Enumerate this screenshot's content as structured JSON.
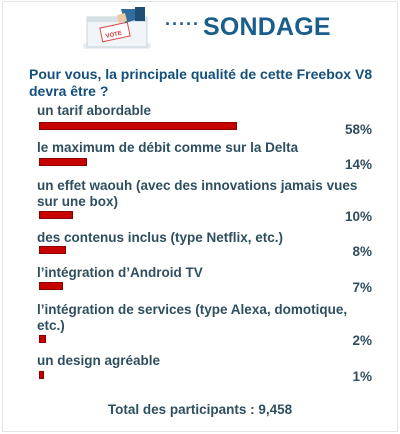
{
  "header": {
    "title": "SONDAGE",
    "dots": "·····",
    "ballot_text": "VOTE",
    "illustration_icon": "ballot-box-icon"
  },
  "question": "Pour vous, la principale qualité de cette Freebox V8 devra être ?",
  "options": [
    {
      "label": "un tarif abordable",
      "percent": 58,
      "percent_label": "58%"
    },
    {
      "label": "le maximum de débit comme sur la Delta",
      "percent": 14,
      "percent_label": "14%"
    },
    {
      "label": "un effet waouh (avec des innovations jamais vues sur une box)",
      "percent": 10,
      "percent_label": "10%"
    },
    {
      "label": "des contenus inclus (type Netflix, etc.)",
      "percent": 8,
      "percent_label": "8%"
    },
    {
      "label": "l’intégration d’Android TV",
      "percent": 7,
      "percent_label": "7%"
    },
    {
      "label": "l’intégration de services (type Alexa, domotique, etc.)",
      "percent": 2,
      "percent_label": "2%"
    },
    {
      "label": "un design agréable",
      "percent": 1,
      "percent_label": "1%"
    }
  ],
  "total": "Total des participants : 9,458",
  "colors": {
    "bar": "#c70000",
    "title": "#1a5f8c",
    "text": "#2f4f5f"
  }
}
